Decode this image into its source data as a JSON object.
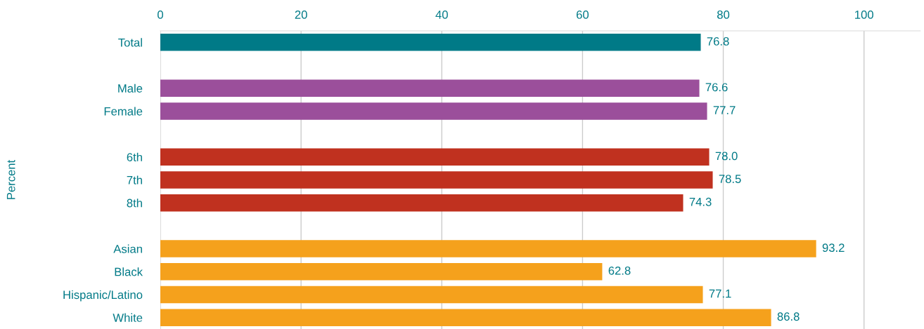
{
  "chart_data": {
    "type": "bar",
    "orientation": "horizontal",
    "ylabel": "Percent",
    "categories": [
      "Total",
      null,
      "Male",
      "Female",
      null,
      "6th",
      "7th",
      "8th",
      null,
      "Asian",
      "Black",
      "Hispanic/Latino",
      "White"
    ],
    "values": [
      76.8,
      null,
      76.6,
      77.7,
      null,
      78.0,
      78.5,
      74.3,
      null,
      93.2,
      62.8,
      77.1,
      86.8
    ],
    "value_labels": [
      "76.8",
      null,
      "76.6",
      "77.7",
      null,
      "78.0",
      "78.5",
      "74.3",
      null,
      "93.2",
      "62.8",
      "77.1",
      "86.8"
    ],
    "colors": [
      "#007a87",
      null,
      "#9b4f9b",
      "#9b4f9b",
      null,
      "#c0311f",
      "#c0311f",
      "#c0311f",
      null,
      "#f5a11c",
      "#f5a11c",
      "#f5a11c",
      "#f5a11c"
    ],
    "xlim": [
      0,
      108
    ],
    "xticks": [
      0,
      20,
      40,
      60,
      80,
      100
    ],
    "grid": "x"
  }
}
